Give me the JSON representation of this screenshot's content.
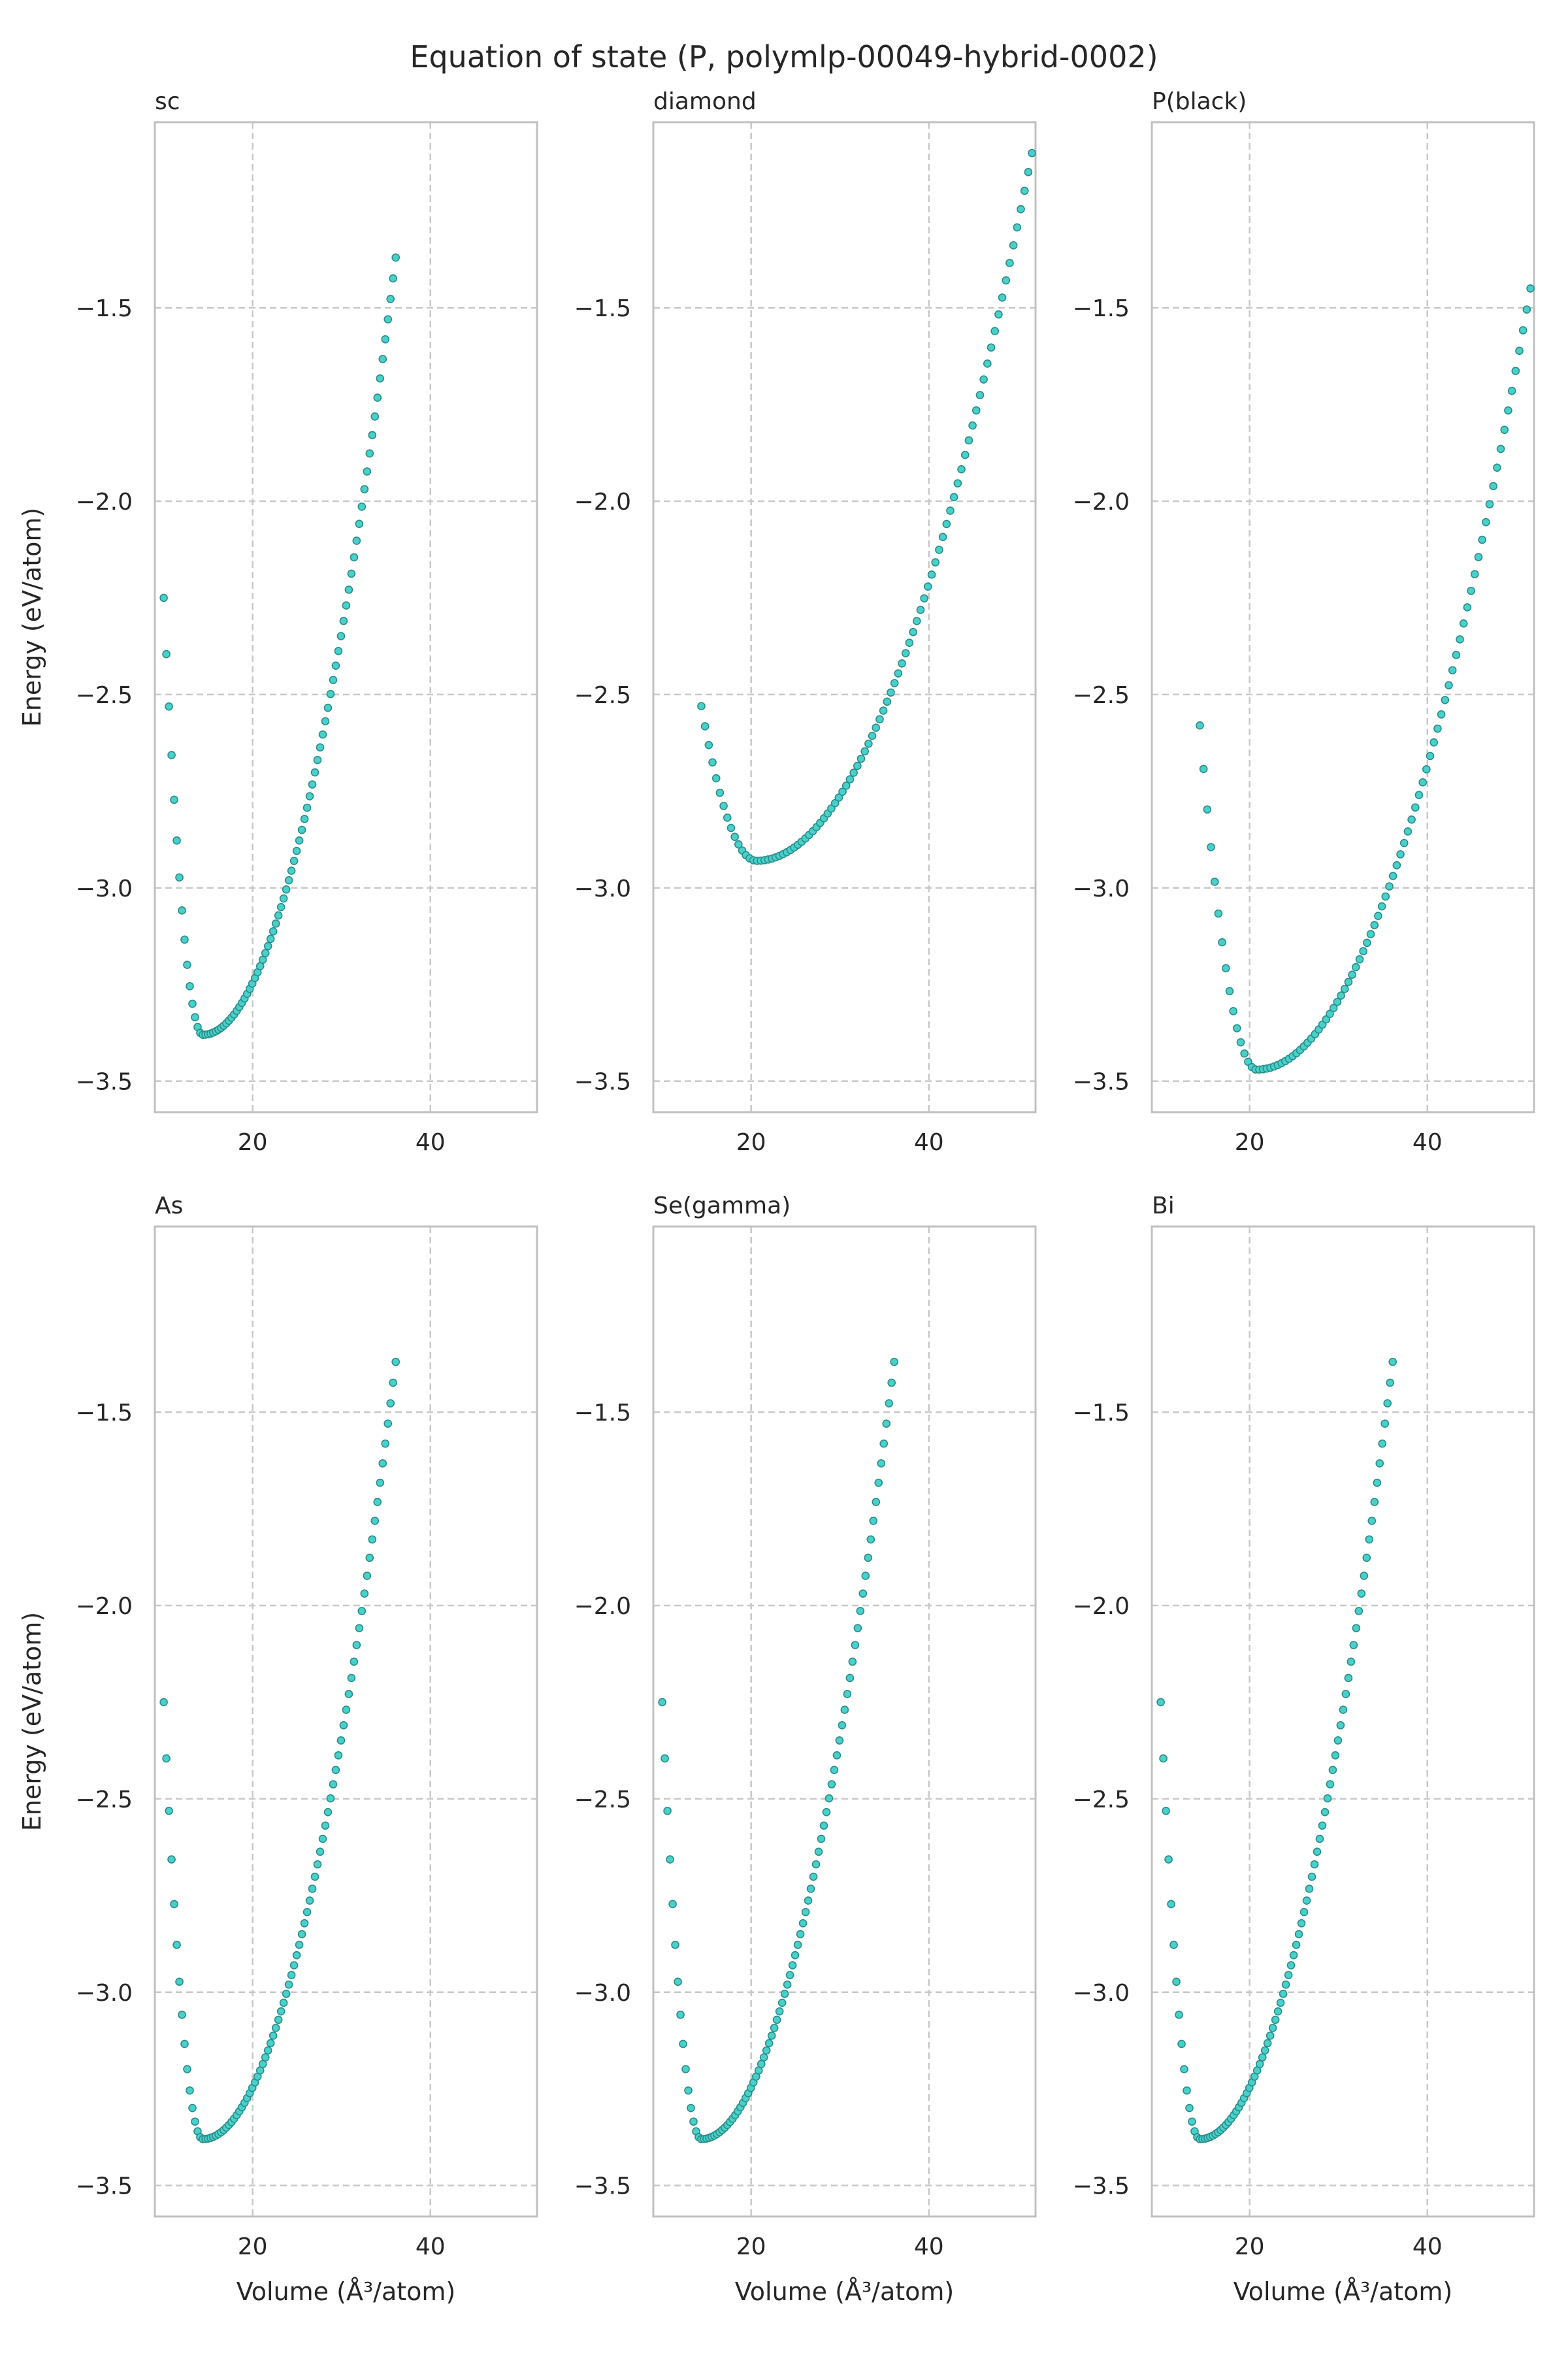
{
  "figure": {
    "title": "Equation of state (P, polymlp-00049-hybrid-0002)"
  },
  "style": {
    "point_fill": "#48d1cc",
    "point_edge": "#2a8c86",
    "grid_color": "#c8c8c8",
    "frame_color": "#c0c0c0"
  },
  "chart_data": [
    {
      "type": "scatter",
      "title": "sc",
      "xlabel": "",
      "ylabel": "Energy (eV/atom)",
      "xlim": [
        9,
        52
      ],
      "ylim": [
        -3.58,
        -1.02
      ],
      "xticks": [
        20,
        40
      ],
      "yticks": [
        -3.5,
        -3.0,
        -2.5,
        -2.0,
        -1.5
      ],
      "xticklabels": [
        "20",
        "40"
      ],
      "yticklabels": [
        "−3.5",
        "−3.0",
        "−2.5",
        "−2.0",
        "−1.5"
      ],
      "grid": true,
      "curve": {
        "v0": 14.4,
        "e0": -3.38,
        "v_min": 10.0,
        "v_max": 36.1,
        "e_at_v_min": -2.25,
        "e_at_v_max": -1.37,
        "n_points": 90
      }
    },
    {
      "type": "scatter",
      "title": "diamond",
      "xlabel": "",
      "ylabel": "",
      "xlim": [
        9,
        52
      ],
      "ylim": [
        -3.58,
        -1.02
      ],
      "xticks": [
        20,
        40
      ],
      "yticks": [
        -3.5,
        -3.0,
        -2.5,
        -2.0,
        -1.5
      ],
      "xticklabels": [
        "20",
        "40"
      ],
      "yticklabels": [
        "−3.5",
        "−3.0",
        "−2.5",
        "−2.0",
        "−1.5"
      ],
      "grid": true,
      "curve": {
        "v0": 20.6,
        "e0": -2.93,
        "v_min": 14.4,
        "v_max": 51.6,
        "e_at_v_min": -2.53,
        "e_at_v_max": -1.1,
        "n_points": 90
      }
    },
    {
      "type": "scatter",
      "title": "P(black)",
      "xlabel": "",
      "ylabel": "",
      "xlim": [
        9,
        52
      ],
      "ylim": [
        -3.58,
        -1.02
      ],
      "xticks": [
        20,
        40
      ],
      "yticks": [
        -3.5,
        -3.0,
        -2.5,
        -2.0,
        -1.5
      ],
      "xticklabels": [
        "20",
        "40"
      ],
      "yticklabels": [
        "−3.5",
        "−3.0",
        "−2.5",
        "−2.0",
        "−1.5"
      ],
      "grid": true,
      "curve": {
        "v0": 20.8,
        "e0": -3.47,
        "v_min": 14.4,
        "v_max": 51.6,
        "e_at_v_min": -2.58,
        "e_at_v_max": -1.45,
        "n_points": 90
      }
    },
    {
      "type": "scatter",
      "title": "As",
      "xlabel": "Volume (Å³/atom)",
      "ylabel": "Energy (eV/atom)",
      "xlim": [
        9,
        52
      ],
      "ylim": [
        -3.58,
        -1.02
      ],
      "xticks": [
        20,
        40
      ],
      "yticks": [
        -3.5,
        -3.0,
        -2.5,
        -2.0,
        -1.5
      ],
      "xticklabels": [
        "20",
        "40"
      ],
      "yticklabels": [
        "−3.5",
        "−3.0",
        "−2.5",
        "−2.0",
        "−1.5"
      ],
      "grid": true,
      "curve": {
        "v0": 14.4,
        "e0": -3.38,
        "v_min": 10.0,
        "v_max": 36.1,
        "e_at_v_min": -2.25,
        "e_at_v_max": -1.37,
        "n_points": 90
      }
    },
    {
      "type": "scatter",
      "title": "Se(gamma)",
      "xlabel": "Volume (Å³/atom)",
      "ylabel": "",
      "xlim": [
        9,
        52
      ],
      "ylim": [
        -3.58,
        -1.02
      ],
      "xticks": [
        20,
        40
      ],
      "yticks": [
        -3.5,
        -3.0,
        -2.5,
        -2.0,
        -1.5
      ],
      "xticklabels": [
        "20",
        "40"
      ],
      "yticklabels": [
        "−3.5",
        "−3.0",
        "−2.5",
        "−2.0",
        "−1.5"
      ],
      "grid": true,
      "curve": {
        "v0": 14.4,
        "e0": -3.38,
        "v_min": 10.0,
        "v_max": 36.1,
        "e_at_v_min": -2.25,
        "e_at_v_max": -1.37,
        "n_points": 90
      }
    },
    {
      "type": "scatter",
      "title": "Bi",
      "xlabel": "Volume (Å³/atom)",
      "ylabel": "",
      "xlim": [
        9,
        52
      ],
      "ylim": [
        -3.58,
        -1.02
      ],
      "xticks": [
        20,
        40
      ],
      "yticks": [
        -3.5,
        -3.0,
        -2.5,
        -2.0,
        -1.5
      ],
      "xticklabels": [
        "20",
        "40"
      ],
      "yticklabels": [
        "−3.5",
        "−3.0",
        "−2.5",
        "−2.0",
        "−1.5"
      ],
      "grid": true,
      "curve": {
        "v0": 14.4,
        "e0": -3.38,
        "v_min": 10.0,
        "v_max": 36.1,
        "e_at_v_min": -2.25,
        "e_at_v_max": -1.37,
        "n_points": 90
      }
    }
  ]
}
